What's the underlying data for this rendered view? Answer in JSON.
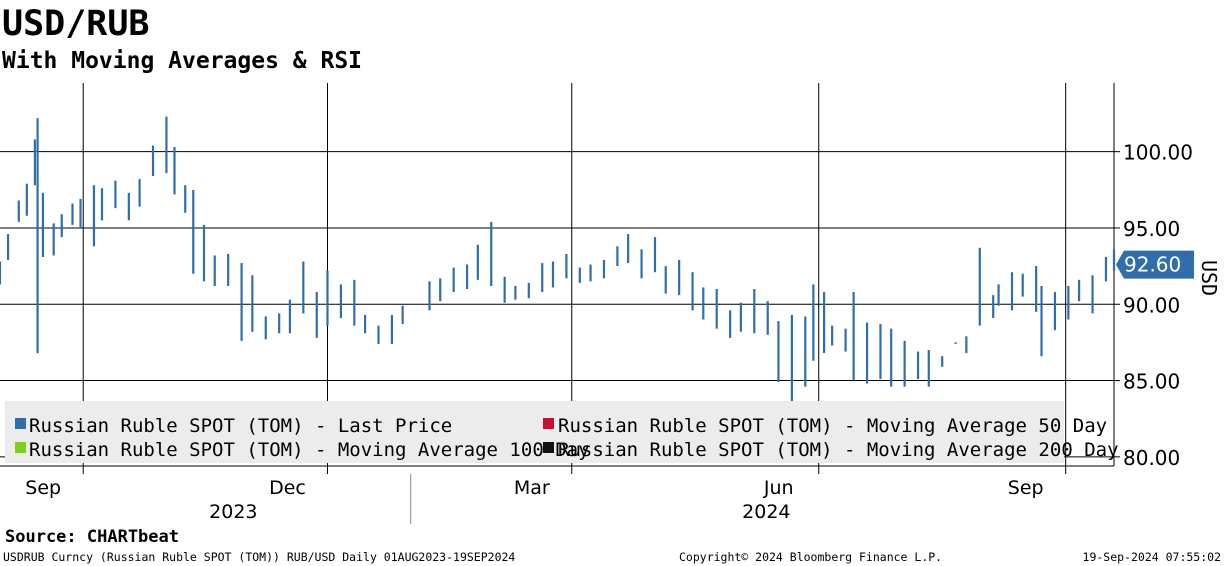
{
  "chart_data": {
    "type": "ohlc",
    "title": "USD/RUB",
    "subtitle": "With Moving Averages & RSI",
    "ylabel": "USD",
    "ylim": [
      79.4,
      104.5
    ],
    "y_ticks": [
      "100.00",
      "95.00",
      "90.00",
      "85.00",
      "80.00"
    ],
    "y_tick_values": [
      100,
      95,
      90,
      85,
      80
    ],
    "x_range": [
      "2023-08-01",
      "2024-09-19"
    ],
    "month_ticks": [
      {
        "label": "Sep",
        "date": "2023-09-01"
      },
      {
        "label": "Dec",
        "date": "2023-12-01"
      },
      {
        "label": "Mar",
        "date": "2024-03-01"
      },
      {
        "label": "Jun",
        "date": "2024-06-01"
      },
      {
        "label": "Sep",
        "date": "2024-09-01"
      }
    ],
    "year_labels": [
      "2023",
      "2024"
    ],
    "vertical_grid_dates": [
      "2023-09-01",
      "2023-12-01",
      "2024-03-01",
      "2024-06-01",
      "2024-09-01"
    ],
    "last_price_label": "92.60",
    "last_price": 92.6,
    "grid": true,
    "legend_position": "bottom-left",
    "legend": [
      {
        "label": "Russian Ruble SPOT (TOM) - Last Price",
        "color": "#2f6eaa"
      },
      {
        "label": "Russian Ruble SPOT (TOM) - Moving Average 50 Day",
        "color": "#c8102e"
      },
      {
        "label": "Russian Ruble SPOT (TOM) - Moving Average 100 Day",
        "color": "#7cd11a"
      },
      {
        "label": "Russian Ruble SPOT (TOM) - Moving Average 200 Day",
        "color": "#111111"
      }
    ],
    "series": [
      {
        "name": "Russian Ruble SPOT (TOM) - Last Price",
        "x": [
          "2023-08-01",
          "2023-08-04",
          "2023-08-08",
          "2023-08-11",
          "2023-08-14",
          "2023-08-15",
          "2023-08-17",
          "2023-08-21",
          "2023-08-24",
          "2023-08-28",
          "2023-08-31",
          "2023-09-05",
          "2023-09-08",
          "2023-09-13",
          "2023-09-18",
          "2023-09-22",
          "2023-09-27",
          "2023-10-02",
          "2023-10-05",
          "2023-10-09",
          "2023-10-12",
          "2023-10-16",
          "2023-10-20",
          "2023-10-25",
          "2023-10-30",
          "2023-11-03",
          "2023-11-08",
          "2023-11-13",
          "2023-11-17",
          "2023-11-22",
          "2023-11-27",
          "2023-12-01",
          "2023-12-06",
          "2023-12-11",
          "2023-12-15",
          "2023-12-20",
          "2023-12-25",
          "2023-12-29",
          "2024-01-08",
          "2024-01-12",
          "2024-01-17",
          "2024-01-22",
          "2024-01-26",
          "2024-01-31",
          "2024-02-05",
          "2024-02-09",
          "2024-02-14",
          "2024-02-19",
          "2024-02-23",
          "2024-02-28",
          "2024-03-04",
          "2024-03-08",
          "2024-03-13",
          "2024-03-18",
          "2024-03-22",
          "2024-03-27",
          "2024-04-01",
          "2024-04-05",
          "2024-04-10",
          "2024-04-15",
          "2024-04-19",
          "2024-04-24",
          "2024-04-29",
          "2024-05-03",
          "2024-05-08",
          "2024-05-13",
          "2024-05-17",
          "2024-05-22",
          "2024-05-27",
          "2024-05-30",
          "2024-06-03",
          "2024-06-06",
          "2024-06-11",
          "2024-06-14",
          "2024-06-19",
          "2024-06-24",
          "2024-06-28",
          "2024-07-03",
          "2024-07-08",
          "2024-07-12",
          "2024-07-17",
          "2024-07-22",
          "2024-07-26",
          "2024-07-31",
          "2024-08-05",
          "2024-08-07",
          "2024-08-12",
          "2024-08-16",
          "2024-08-21",
          "2024-08-23",
          "2024-08-28",
          "2024-09-02",
          "2024-09-06",
          "2024-09-11",
          "2024-09-16",
          "2024-09-19"
        ],
        "high": [
          92.8,
          94.6,
          96.8,
          97.9,
          100.8,
          102.2,
          97.3,
          95.3,
          95.9,
          96.6,
          96.9,
          97.8,
          97.6,
          98.1,
          97.3,
          98.2,
          100.4,
          102.3,
          100.3,
          97.8,
          97.5,
          95.2,
          93.2,
          93.3,
          92.7,
          91.9,
          89.2,
          89.4,
          90.3,
          92.8,
          90.8,
          92.2,
          91.3,
          91.6,
          89.3,
          88.6,
          89.3,
          89.9,
          91.5,
          91.7,
          92.4,
          92.6,
          93.9,
          95.4,
          91.8,
          91.2,
          91.4,
          92.7,
          92.8,
          93.3,
          92.4,
          92.6,
          92.9,
          93.8,
          94.6,
          93.6,
          94.4,
          92.5,
          92.9,
          92.1,
          91.1,
          91.0,
          89.6,
          90.1,
          91.0,
          90.2,
          88.9,
          89.3,
          89.2,
          91.3,
          90.8,
          88.6,
          88.4,
          90.8,
          88.8,
          88.7,
          88.4,
          87.6,
          86.9,
          87.0,
          86.6,
          87.5,
          87.9,
          93.7,
          90.6,
          91.3,
          92.1,
          92.0,
          92.5,
          91.2,
          90.8,
          91.2,
          91.6,
          91.9,
          93.1,
          93.6
        ],
        "low": [
          91.3,
          92.9,
          95.4,
          95.8,
          97.8,
          86.8,
          93.1,
          93.2,
          94.4,
          95.2,
          95.0,
          93.8,
          95.5,
          96.3,
          95.5,
          96.4,
          98.4,
          98.6,
          97.2,
          96.0,
          92.0,
          91.5,
          91.2,
          91.2,
          87.6,
          88.2,
          87.7,
          88.1,
          88.1,
          89.4,
          87.8,
          88.6,
          89.1,
          88.6,
          88.1,
          87.4,
          87.4,
          88.7,
          89.6,
          90.2,
          90.8,
          91.0,
          91.6,
          91.2,
          90.1,
          90.3,
          90.4,
          90.8,
          91.1,
          91.7,
          91.4,
          91.5,
          91.7,
          92.5,
          92.7,
          91.7,
          92.1,
          90.7,
          90.6,
          89.6,
          89.0,
          88.4,
          87.8,
          88.2,
          88.1,
          88.0,
          84.9,
          83.2,
          84.6,
          86.3,
          86.8,
          87.3,
          86.9,
          85.0,
          84.8,
          85.1,
          84.6,
          84.6,
          85.1,
          84.6,
          85.9,
          87.4,
          86.8,
          88.6,
          89.1,
          89.9,
          89.6,
          90.5,
          89.5,
          86.6,
          88.3,
          89.0,
          90.2,
          89.4,
          91.5,
          92.2
        ]
      },
      {
        "name": "Russian Ruble SPOT (TOM) - Moving Average 50 Day",
        "values": []
      },
      {
        "name": "Russian Ruble SPOT (TOM) - Moving Average 100 Day",
        "values": []
      },
      {
        "name": "Russian Ruble SPOT (TOM) - Moving Average 200 Day",
        "values": []
      }
    ]
  },
  "footer": {
    "source": "Source: CHARTbeat",
    "ticker": "USDRUB Curncy (Russian Ruble SPOT (TOM)) RUB/USD  Daily 01AUG2023-19SEP2024",
    "copyright": "Copyright© 2024 Bloomberg Finance L.P.",
    "timestamp": "19-Sep-2024 07:55:02"
  },
  "colors": {
    "price": "#2f6eaa",
    "last_label_bg": "#2f6eaa",
    "legend_bg": "#ececec",
    "grid": "#000000"
  }
}
